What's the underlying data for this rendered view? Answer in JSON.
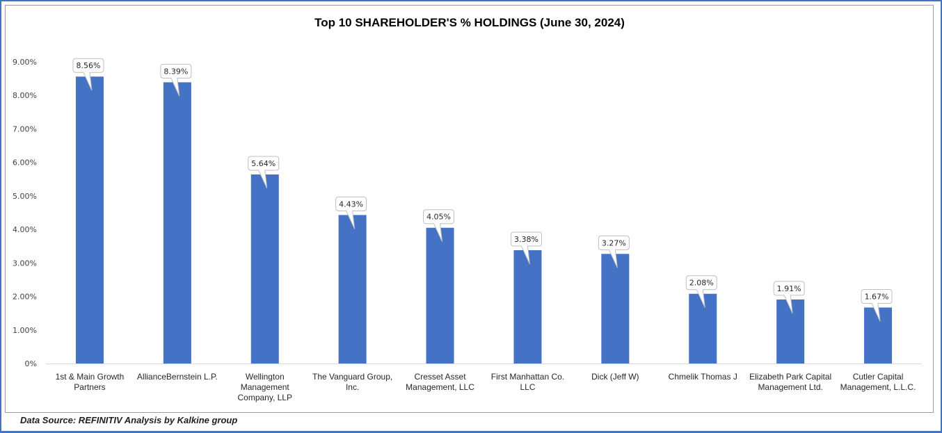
{
  "chart_data": {
    "type": "bar",
    "title": "Top 10 SHAREHOLDER'S % HOLDINGS (June 30, 2024)",
    "xlabel": "",
    "ylabel": "",
    "ylim": [
      0,
      9
    ],
    "yticks": [
      "0%",
      "1.00%",
      "2.00%",
      "3.00%",
      "4.00%",
      "5.00%",
      "6.00%",
      "7.00%",
      "8.00%",
      "9.00%"
    ],
    "grid": false,
    "legend": "none",
    "categories": [
      [
        "1st & Main Growth",
        "Partners"
      ],
      [
        "AllianceBernstein L.P."
      ],
      [
        "Wellington",
        "Management",
        "Company, LLP"
      ],
      [
        "The Vanguard Group,",
        "Inc."
      ],
      [
        "Cresset Asset",
        "Management, LLC"
      ],
      [
        "First Manhattan Co.",
        "LLC"
      ],
      [
        "Dick (Jeff W)"
      ],
      [
        "Chmelik Thomas J"
      ],
      [
        "Elizabeth Park Capital",
        "Management Ltd."
      ],
      [
        "Cutler Capital",
        "Management, L.L.C."
      ]
    ],
    "values": [
      8.56,
      8.39,
      5.64,
      4.43,
      4.05,
      3.38,
      3.27,
      2.08,
      1.91,
      1.67
    ],
    "data_labels": [
      "8.56%",
      "8.39%",
      "5.64%",
      "4.43%",
      "4.05%",
      "3.38%",
      "3.27%",
      "2.08%",
      "1.91%",
      "1.67%"
    ],
    "bar_color": "#4472C4"
  },
  "footer": {
    "source": "Data Source: REFINITIV Analysis by Kalkine group"
  }
}
